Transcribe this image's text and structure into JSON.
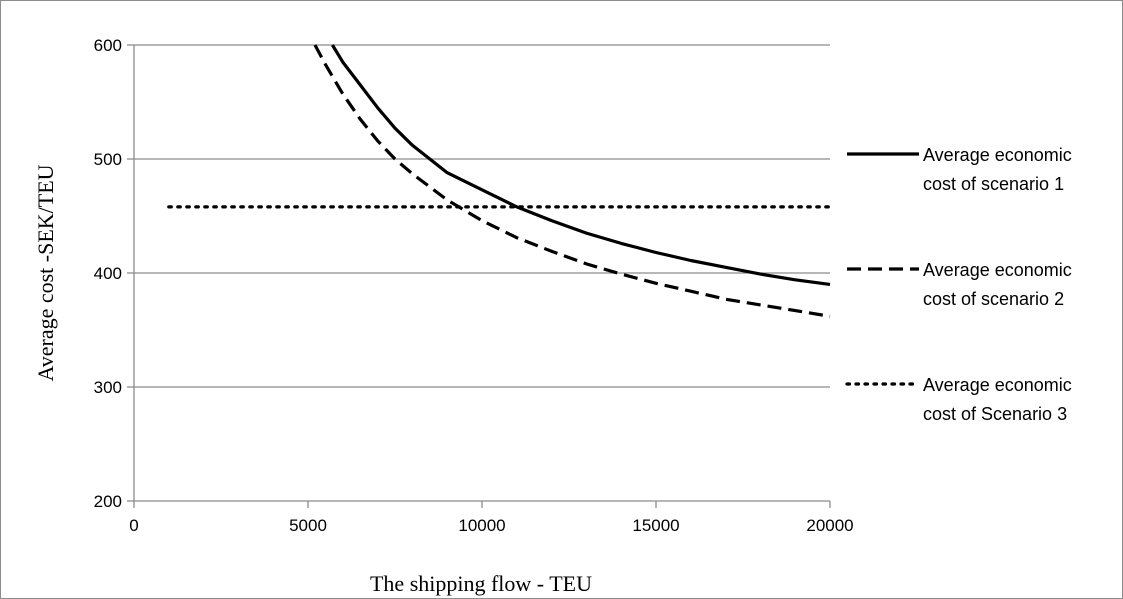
{
  "chart_data": {
    "type": "line",
    "title": "",
    "xlabel": "The shipping flow - TEU",
    "ylabel": "Average cost -SEK/TEU",
    "xlim": [
      0,
      20000
    ],
    "ylim": [
      200,
      600
    ],
    "x_ticks": [
      0,
      5000,
      10000,
      15000,
      20000
    ],
    "y_ticks": [
      200,
      300,
      400,
      500,
      600
    ],
    "grid": "horizontal",
    "legend_position": "right",
    "series": [
      {
        "name_lines": [
          "Average economic",
          "cost of scenario 1"
        ],
        "style": "solid",
        "color": "#000000",
        "x": [
          5700,
          6000,
          6500,
          7000,
          7500,
          8000,
          8500,
          9000,
          10000,
          11000,
          12000,
          13000,
          14000,
          15000,
          16000,
          17000,
          18000,
          19000,
          20000
        ],
        "y": [
          600,
          585,
          565,
          545,
          527,
          512,
          500,
          488,
          473,
          458,
          446,
          435,
          426,
          418,
          411,
          405,
          399,
          394,
          390
        ]
      },
      {
        "name_lines": [
          "Average economic",
          "cost of scenario 2"
        ],
        "style": "dashed",
        "color": "#000000",
        "x": [
          5200,
          5500,
          6000,
          6500,
          7000,
          7500,
          8000,
          9000,
          10000,
          11000,
          12000,
          13000,
          14000,
          15000,
          16000,
          17000,
          18000,
          19000,
          20000
        ],
        "y": [
          600,
          583,
          557,
          535,
          516,
          500,
          487,
          464,
          446,
          431,
          419,
          408,
          399,
          391,
          384,
          377,
          372,
          367,
          362
        ]
      },
      {
        "name_lines": [
          "Average economic",
          "cost of Scenario 3"
        ],
        "style": "dotted",
        "color": "#000000",
        "x": [
          1000,
          20000
        ],
        "y": [
          458,
          458
        ]
      }
    ]
  }
}
